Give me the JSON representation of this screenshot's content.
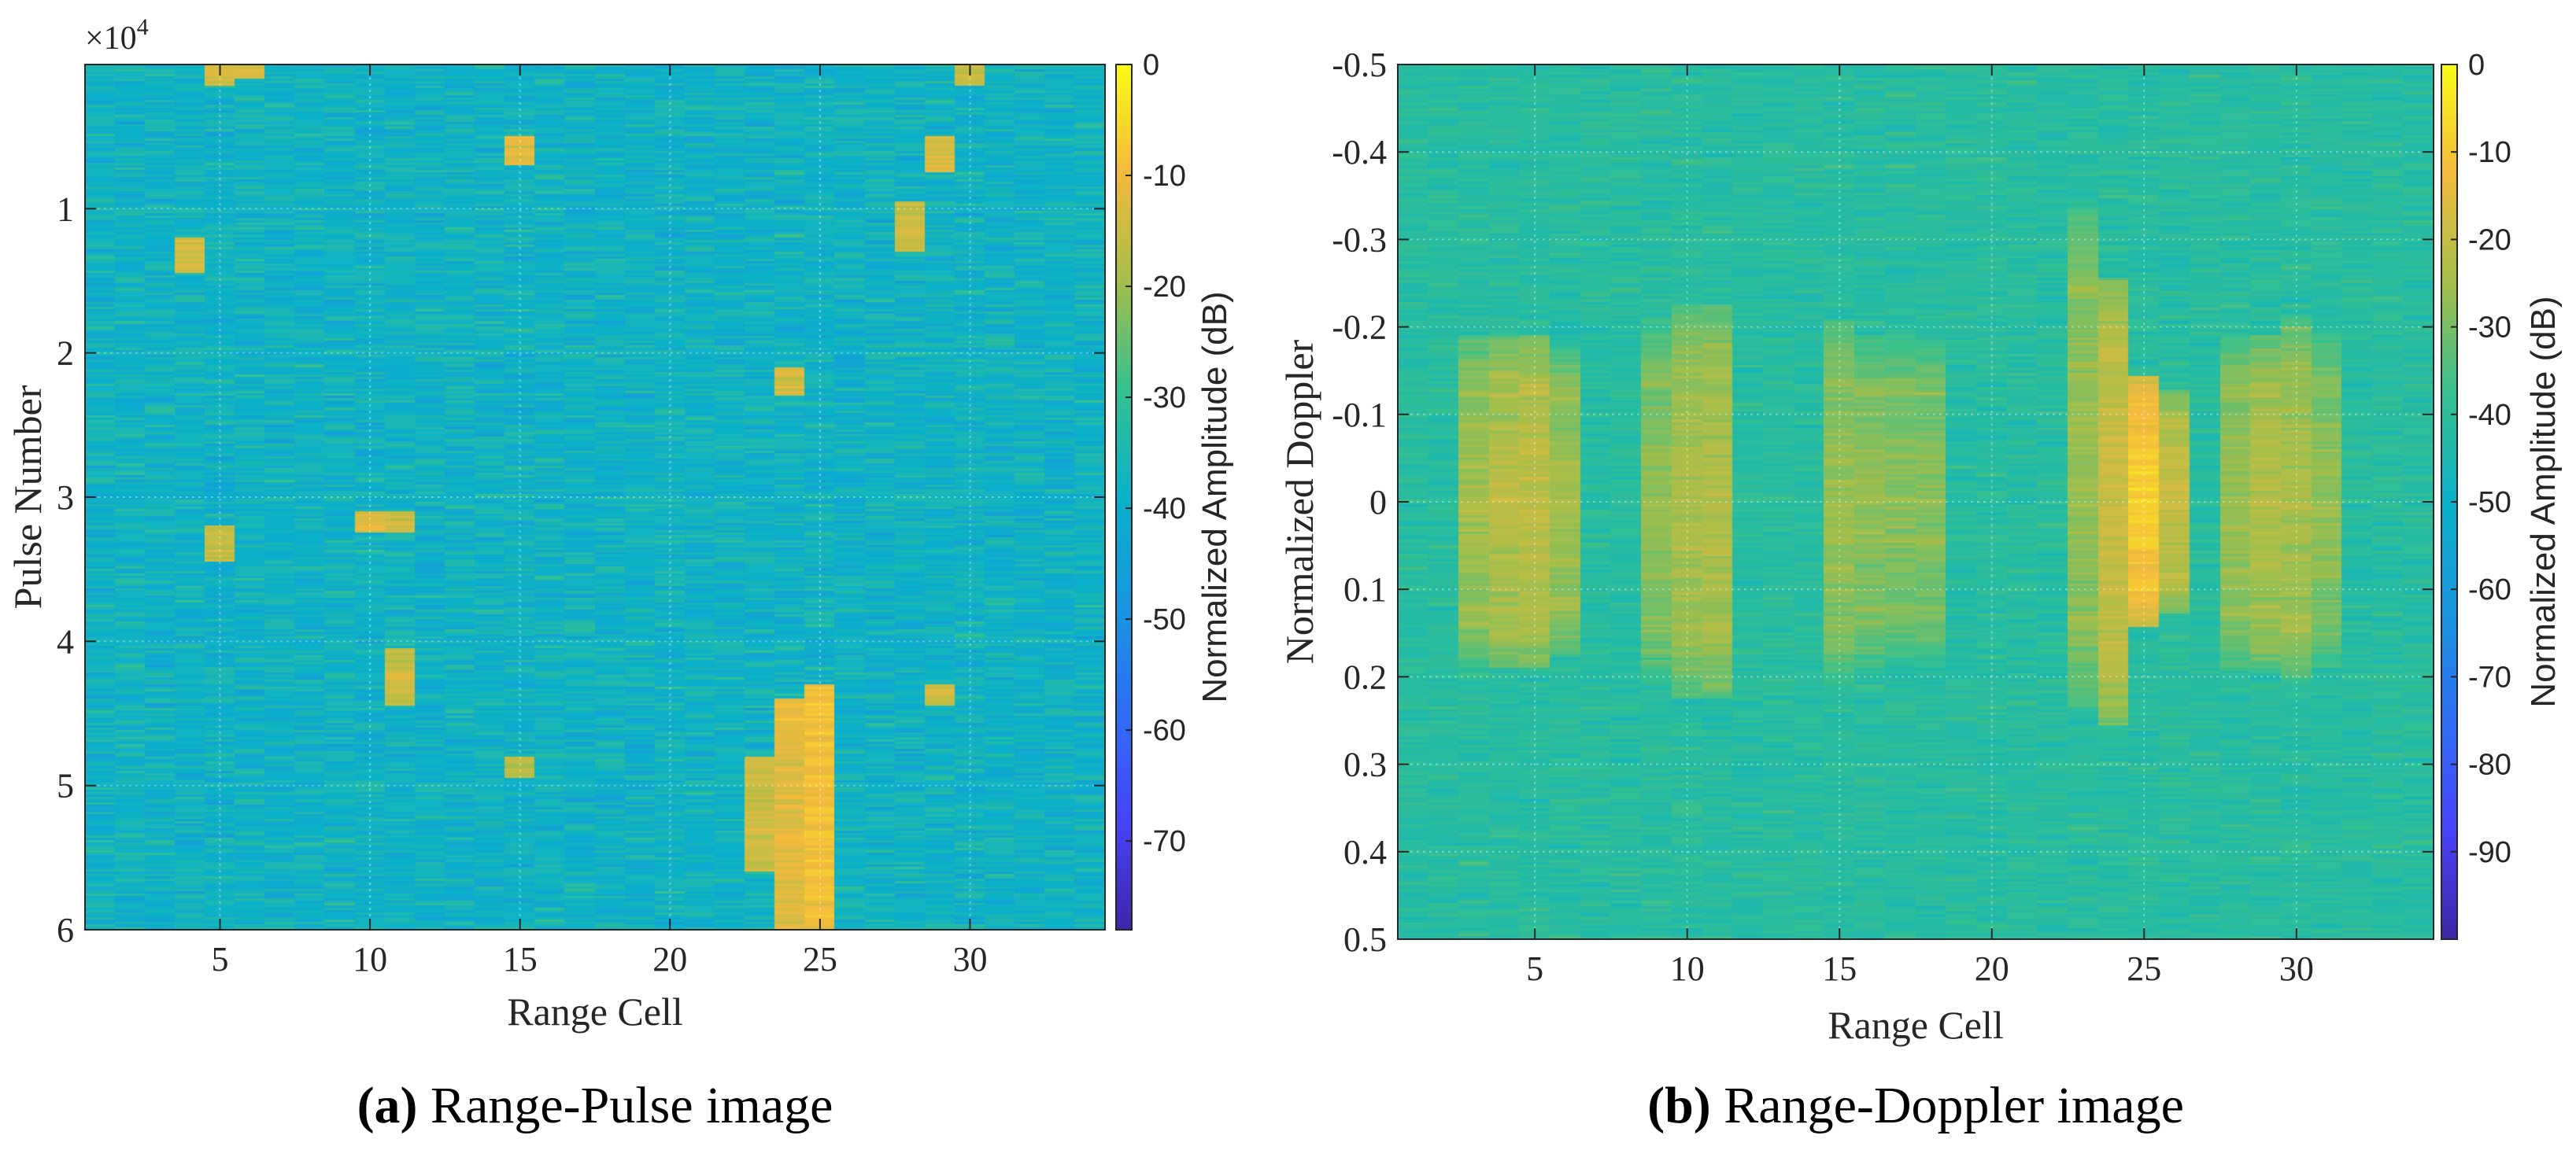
{
  "chart_data": [
    {
      "type": "heatmap",
      "panel_tag": "(a)",
      "caption": "Range-Pulse image",
      "xlabel": "Range Cell",
      "ylabel": "Pulse Number",
      "y_exponent_base": "×10",
      "y_exponent_power": "4",
      "xlim": [
        0.5,
        34.5
      ],
      "ylim": [
        0,
        6
      ],
      "y_reversed": true,
      "xticks": [
        5,
        10,
        15,
        20,
        25,
        30
      ],
      "xtick_labels": [
        "5",
        "10",
        "15",
        "20",
        "25",
        "30"
      ],
      "yticks": [
        1,
        2,
        3,
        4,
        5,
        6
      ],
      "ytick_labels": [
        "1",
        "2",
        "3",
        "4",
        "5",
        "6"
      ],
      "grid": true,
      "colormap": "parula",
      "colorbar": {
        "label": "Normalized Amplitude (dB)",
        "range": [
          -78,
          0
        ],
        "ticks": [
          0,
          -10,
          -20,
          -30,
          -40,
          -50,
          -60,
          -70
        ],
        "tick_labels": [
          "0",
          "-10",
          "-20",
          "-30",
          "-40",
          "-50",
          "-60",
          "-70"
        ]
      },
      "background_level_db": -38,
      "noise_std_db": 4.5,
      "hotspots": [
        {
          "range_cell": 25,
          "pulse_from": 4.3,
          "pulse_to": 6.0,
          "level_db": -9
        },
        {
          "range_cell": 24,
          "pulse_from": 4.4,
          "pulse_to": 6.0,
          "level_db": -12
        },
        {
          "range_cell": 23,
          "pulse_from": 4.8,
          "pulse_to": 5.6,
          "level_db": -15
        },
        {
          "range_cell": 24,
          "pulse_from": 2.1,
          "pulse_to": 2.3,
          "level_db": -14
        },
        {
          "range_cell": 10,
          "pulse_from": 3.1,
          "pulse_to": 3.25,
          "level_db": -13
        },
        {
          "range_cell": 11,
          "pulse_from": 3.1,
          "pulse_to": 3.25,
          "level_db": -14
        },
        {
          "range_cell": 11,
          "pulse_from": 4.05,
          "pulse_to": 4.45,
          "level_db": -15
        },
        {
          "range_cell": 15,
          "pulse_from": 0.5,
          "pulse_to": 0.7,
          "level_db": -12
        },
        {
          "range_cell": 4,
          "pulse_from": 1.2,
          "pulse_to": 1.45,
          "level_db": -14
        },
        {
          "range_cell": 5,
          "pulse_from": 0.0,
          "pulse_to": 0.15,
          "level_db": -14
        },
        {
          "range_cell": 6,
          "pulse_from": 0.0,
          "pulse_to": 0.1,
          "level_db": -13
        },
        {
          "range_cell": 29,
          "pulse_from": 0.5,
          "pulse_to": 0.75,
          "level_db": -13
        },
        {
          "range_cell": 28,
          "pulse_from": 0.95,
          "pulse_to": 1.3,
          "level_db": -15
        },
        {
          "range_cell": 5,
          "pulse_from": 3.2,
          "pulse_to": 3.45,
          "level_db": -16
        },
        {
          "range_cell": 29,
          "pulse_from": 4.3,
          "pulse_to": 4.45,
          "level_db": -15
        },
        {
          "range_cell": 30,
          "pulse_from": 0.0,
          "pulse_to": 0.15,
          "level_db": -16
        },
        {
          "range_cell": 15,
          "pulse_from": 4.8,
          "pulse_to": 4.95,
          "level_db": -17
        }
      ]
    },
    {
      "type": "heatmap",
      "panel_tag": "(b)",
      "caption": "Range-Doppler image",
      "xlabel": "Range Cell",
      "ylabel": "Normalized Doppler",
      "xlim": [
        0.5,
        34.5
      ],
      "ylim": [
        -0.5,
        0.5
      ],
      "y_reversed": true,
      "xticks": [
        5,
        10,
        15,
        20,
        25,
        30
      ],
      "xtick_labels": [
        "5",
        "10",
        "15",
        "20",
        "25",
        "30"
      ],
      "yticks": [
        -0.5,
        -0.4,
        -0.3,
        -0.2,
        -0.1,
        0,
        0.1,
        0.2,
        0.3,
        0.4,
        0.5
      ],
      "ytick_labels": [
        "-0.5",
        "-0.4",
        "-0.3",
        "-0.2",
        "-0.1",
        "0",
        "0.1",
        "0.2",
        "0.3",
        "0.4",
        "0.5"
      ],
      "grid": true,
      "colormap": "parula",
      "colorbar": {
        "label": "Normalized Amplitude (dB)",
        "range": [
          -100,
          0
        ],
        "ticks": [
          0,
          -10,
          -20,
          -30,
          -40,
          -50,
          -60,
          -70,
          -80,
          -90
        ],
        "tick_labels": [
          "0",
          "-10",
          "-20",
          "-30",
          "-40",
          "-50",
          "-60",
          "-70",
          "-80",
          "-90"
        ]
      },
      "background_level_db": -41,
      "noise_std_db": 3,
      "hotspots": [
        {
          "range_cell": 25,
          "doppler_center": 0.0,
          "doppler_halfwidth": 0.09,
          "level_db": -8
        },
        {
          "range_cell": 24,
          "doppler_center": 0.0,
          "doppler_halfwidth": 0.16,
          "level_db": -19
        },
        {
          "range_cell": 26,
          "doppler_center": 0.0,
          "doppler_halfwidth": 0.08,
          "level_db": -20
        },
        {
          "range_cell": 23,
          "doppler_center": -0.05,
          "doppler_halfwidth": 0.18,
          "level_db": -26
        },
        {
          "range_cell": 4,
          "doppler_center": 0.0,
          "doppler_halfwidth": 0.12,
          "level_db": -22
        },
        {
          "range_cell": 5,
          "doppler_center": 0.0,
          "doppler_halfwidth": 0.12,
          "level_db": -21
        },
        {
          "range_cell": 3,
          "doppler_center": 0.0,
          "doppler_halfwidth": 0.12,
          "level_db": -25
        },
        {
          "range_cell": 6,
          "doppler_center": 0.0,
          "doppler_halfwidth": 0.11,
          "level_db": -25
        },
        {
          "range_cell": 10,
          "doppler_center": 0.0,
          "doppler_halfwidth": 0.14,
          "level_db": -24
        },
        {
          "range_cell": 11,
          "doppler_center": 0.0,
          "doppler_halfwidth": 0.14,
          "level_db": -23
        },
        {
          "range_cell": 9,
          "doppler_center": 0.0,
          "doppler_halfwidth": 0.13,
          "level_db": -27
        },
        {
          "range_cell": 15,
          "doppler_center": 0.0,
          "doppler_halfwidth": 0.13,
          "level_db": -26
        },
        {
          "range_cell": 16,
          "doppler_center": 0.0,
          "doppler_halfwidth": 0.12,
          "level_db": -27
        },
        {
          "range_cell": 17,
          "doppler_center": 0.0,
          "doppler_halfwidth": 0.12,
          "level_db": -28
        },
        {
          "range_cell": 18,
          "doppler_center": 0.0,
          "doppler_halfwidth": 0.12,
          "level_db": -28
        },
        {
          "range_cell": 29,
          "doppler_center": 0.0,
          "doppler_halfwidth": 0.12,
          "level_db": -23
        },
        {
          "range_cell": 30,
          "doppler_center": 0.0,
          "doppler_halfwidth": 0.13,
          "level_db": -24
        },
        {
          "range_cell": 28,
          "doppler_center": 0.0,
          "doppler_halfwidth": 0.12,
          "level_db": -26
        },
        {
          "range_cell": 31,
          "doppler_center": 0.0,
          "doppler_halfwidth": 0.12,
          "level_db": -27
        }
      ]
    }
  ]
}
